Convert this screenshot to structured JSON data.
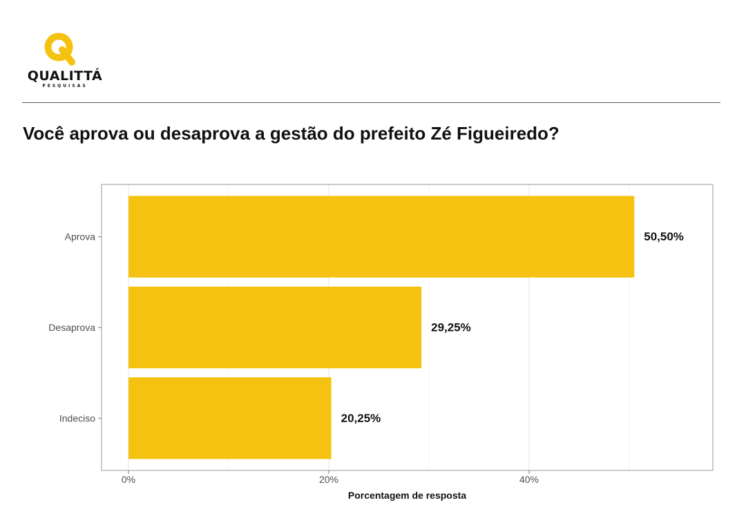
{
  "brand": {
    "name": "QUALITTÁ",
    "sub": "PESQUISAS",
    "color": "#f5c211"
  },
  "title": "Você aprova ou desaprova a gestão do prefeito Zé Figueiredo?",
  "chart_data": {
    "type": "bar",
    "orientation": "horizontal",
    "title": "Você aprova ou desaprova a gestão do prefeito Zé Figueiredo?",
    "categories": [
      "Aprova",
      "Desaprova",
      "Indeciso"
    ],
    "values": [
      50.5,
      29.25,
      20.25
    ],
    "value_labels": [
      "50,50%",
      "29,25%",
      "20,25%"
    ],
    "xlabel": "Porcentagem de resposta",
    "ylabel": "",
    "xlim": [
      0,
      58.3
    ],
    "xticks": [
      0,
      20,
      40
    ],
    "xtick_labels": [
      "0%",
      "20%",
      "40%"
    ],
    "grid": true,
    "bar_color": "#f5c211"
  }
}
